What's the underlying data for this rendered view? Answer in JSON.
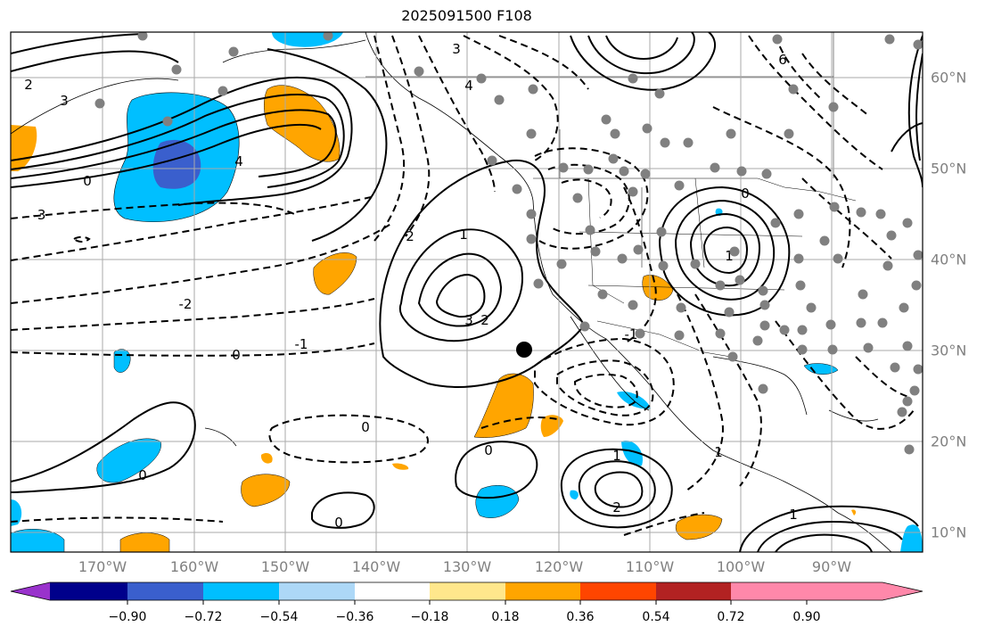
{
  "title": "2025091500 F108",
  "axes": {
    "lon_labels": [
      "170°W",
      "160°W",
      "150°W",
      "140°W",
      "130°W",
      "120°W",
      "110°W",
      "100°W",
      "90°W"
    ],
    "lat_labels": [
      "60°N",
      "50°N",
      "40°N",
      "30°N",
      "20°N",
      "10°N"
    ]
  },
  "colorbar": {
    "tick_labels": [
      "−0.90",
      "−0.72",
      "−0.54",
      "−0.36",
      "−0.18",
      "0.18",
      "0.36",
      "0.54",
      "0.72",
      "0.90"
    ],
    "colors": [
      "#9932cc",
      "#00008b",
      "#3a5fcd",
      "#00bfff",
      "#add8f7",
      "#ffffff",
      "#ffe78c",
      "#ffa500",
      "#ff4500",
      "#b22222",
      "#ff88aa"
    ]
  },
  "contour_labels": [
    "3",
    "2",
    "4",
    "0",
    "-3",
    "-2",
    "-1",
    "4",
    "3",
    "6",
    "1",
    "0",
    "1",
    "2",
    "3",
    "2",
    "-1",
    "0",
    "0",
    "0",
    "1",
    "2",
    "1",
    "0",
    "0",
    "1"
  ],
  "colors": {
    "grid": "#aaaaaa",
    "station": "#808080",
    "pos_fill": "#ffa500",
    "neg_fill": "#00bfff",
    "neg_fill_dark": "#3a5fcd"
  },
  "marker_icon": "black-dot"
}
